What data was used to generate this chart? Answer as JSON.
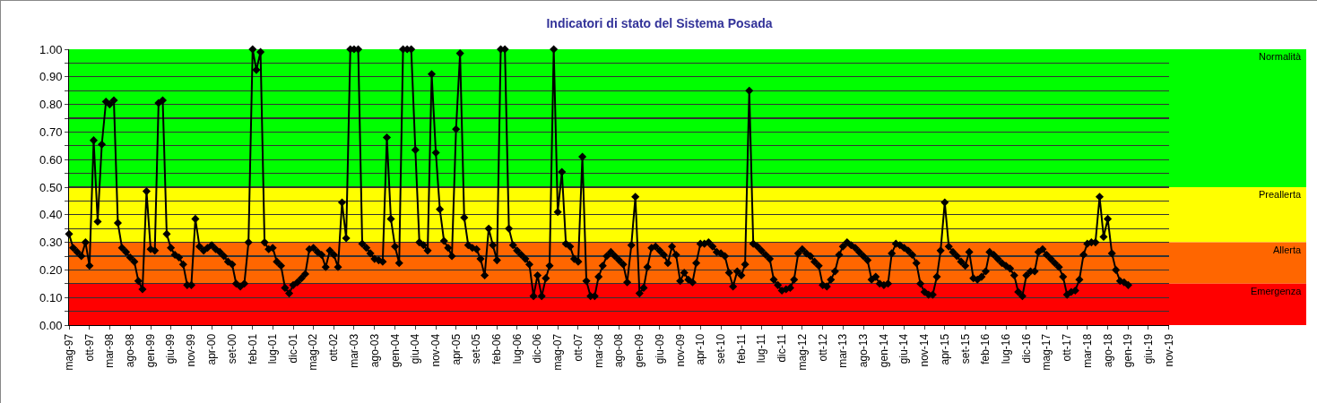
{
  "chart_data": {
    "type": "line",
    "title": "Indicatori di stato del Sistema Posada",
    "x": [
      "1997-05",
      "1997-06",
      "1997-07",
      "1997-08",
      "1997-09",
      "1997-10",
      "1997-11",
      "1997-12",
      "1998-01",
      "1998-02",
      "1998-03",
      "1998-04",
      "1998-05",
      "1998-06",
      "1998-07",
      "1998-08",
      "1998-09",
      "1998-10",
      "1998-11",
      "1998-12",
      "1999-01",
      "1999-02",
      "1999-03",
      "1999-04",
      "1999-05",
      "1999-06",
      "1999-07",
      "1999-08",
      "1999-09",
      "1999-10",
      "1999-11",
      "1999-12",
      "2000-01",
      "2000-02",
      "2000-03",
      "2000-04",
      "2000-05",
      "2000-06",
      "2000-07",
      "2000-08",
      "2000-09",
      "2000-10",
      "2000-11",
      "2000-12",
      "2001-01",
      "2001-02",
      "2001-03",
      "2001-04",
      "2001-05",
      "2001-06",
      "2001-07",
      "2001-08",
      "2001-09",
      "2001-10",
      "2001-11",
      "2001-12",
      "2002-01",
      "2002-02",
      "2002-03",
      "2002-04",
      "2002-05",
      "2002-06",
      "2002-07",
      "2002-08",
      "2002-09",
      "2002-10",
      "2002-11",
      "2002-12",
      "2003-01",
      "2003-02",
      "2003-03",
      "2003-04",
      "2003-05",
      "2003-06",
      "2003-07",
      "2003-08",
      "2003-09",
      "2003-10",
      "2003-11",
      "2003-12",
      "2004-01",
      "2004-02",
      "2004-03",
      "2004-04",
      "2004-05",
      "2004-06",
      "2004-07",
      "2004-08",
      "2004-09",
      "2004-10",
      "2004-11",
      "2004-12",
      "2005-01",
      "2005-02",
      "2005-03",
      "2005-04",
      "2005-05",
      "2005-06",
      "2005-07",
      "2005-08",
      "2005-09",
      "2005-10",
      "2005-11",
      "2005-12",
      "2006-01",
      "2006-02",
      "2006-03",
      "2006-04",
      "2006-05",
      "2006-06",
      "2006-07",
      "2006-08",
      "2006-09",
      "2006-10",
      "2006-11",
      "2006-12",
      "2007-01",
      "2007-02",
      "2007-03",
      "2007-04",
      "2007-05",
      "2007-06",
      "2007-07",
      "2007-08",
      "2007-09",
      "2007-10",
      "2007-11",
      "2007-12",
      "2008-01",
      "2008-02",
      "2008-03",
      "2008-04",
      "2008-05",
      "2008-06",
      "2008-07",
      "2008-08",
      "2008-09",
      "2008-10",
      "2008-11",
      "2008-12",
      "2009-01",
      "2009-02",
      "2009-03",
      "2009-04",
      "2009-05",
      "2009-06",
      "2009-07",
      "2009-08",
      "2009-09",
      "2009-10",
      "2009-11",
      "2009-12",
      "2010-01",
      "2010-02",
      "2010-03",
      "2010-04",
      "2010-05",
      "2010-06",
      "2010-07",
      "2010-08",
      "2010-09",
      "2010-10",
      "2010-11",
      "2010-12",
      "2011-01",
      "2011-02",
      "2011-03",
      "2011-04",
      "2011-05",
      "2011-06",
      "2011-07",
      "2011-08",
      "2011-09",
      "2011-10",
      "2011-11",
      "2011-12",
      "2012-01",
      "2012-02",
      "2012-03",
      "2012-04",
      "2012-05",
      "2012-06",
      "2012-07",
      "2012-08",
      "2012-09",
      "2012-10",
      "2012-11",
      "2012-12",
      "2013-01",
      "2013-02",
      "2013-03",
      "2013-04",
      "2013-05",
      "2013-06",
      "2013-07",
      "2013-08",
      "2013-09",
      "2013-10",
      "2013-11",
      "2013-12",
      "2014-01",
      "2014-02",
      "2014-03",
      "2014-04",
      "2014-05",
      "2014-06",
      "2014-07",
      "2014-08",
      "2014-09",
      "2014-10",
      "2014-11",
      "2014-12",
      "2015-01",
      "2015-02",
      "2015-03",
      "2015-04",
      "2015-05",
      "2015-06",
      "2015-07",
      "2015-08",
      "2015-09",
      "2015-10",
      "2015-11",
      "2015-12",
      "2016-01",
      "2016-02",
      "2016-03",
      "2016-04",
      "2016-05",
      "2016-06",
      "2016-07",
      "2016-08",
      "2016-09",
      "2016-10",
      "2016-11",
      "2016-12",
      "2017-01",
      "2017-02",
      "2017-03",
      "2017-04",
      "2017-05",
      "2017-06",
      "2017-07",
      "2017-08",
      "2017-09",
      "2017-10",
      "2017-11",
      "2017-12",
      "2018-01",
      "2018-02",
      "2018-03",
      "2018-04",
      "2018-05",
      "2018-06",
      "2018-07",
      "2018-08",
      "2018-09",
      "2018-10",
      "2018-11",
      "2018-12",
      "2019-01"
    ],
    "series": [
      {
        "color": "#000000",
        "values": [
          0.33,
          0.28,
          0.265,
          0.25,
          0.3,
          0.215,
          0.67,
          0.375,
          0.655,
          0.81,
          0.8,
          0.815,
          0.37,
          0.28,
          0.265,
          0.245,
          0.23,
          0.16,
          0.13,
          0.485,
          0.275,
          0.27,
          0.805,
          0.815,
          0.33,
          0.28,
          0.255,
          0.245,
          0.22,
          0.145,
          0.145,
          0.385,
          0.285,
          0.27,
          0.28,
          0.29,
          0.275,
          0.265,
          0.25,
          0.23,
          0.22,
          0.15,
          0.14,
          0.15,
          0.3,
          1.0,
          0.925,
          0.99,
          0.3,
          0.275,
          0.28,
          0.23,
          0.215,
          0.135,
          0.115,
          0.145,
          0.155,
          0.17,
          0.185,
          0.275,
          0.28,
          0.265,
          0.255,
          0.21,
          0.27,
          0.255,
          0.21,
          0.445,
          0.315,
          1.0,
          1.0,
          1.0,
          0.295,
          0.28,
          0.26,
          0.24,
          0.235,
          0.23,
          0.68,
          0.385,
          0.285,
          0.225,
          1.0,
          1.0,
          1.0,
          0.635,
          0.3,
          0.29,
          0.27,
          0.91,
          0.625,
          0.42,
          0.305,
          0.28,
          0.25,
          0.71,
          0.985,
          0.39,
          0.29,
          0.28,
          0.275,
          0.24,
          0.18,
          0.35,
          0.29,
          0.235,
          1.0,
          1.0,
          0.35,
          0.29,
          0.27,
          0.255,
          0.24,
          0.22,
          0.105,
          0.18,
          0.105,
          0.17,
          0.215,
          1.0,
          0.41,
          0.555,
          0.295,
          0.285,
          0.24,
          0.23,
          0.61,
          0.16,
          0.105,
          0.105,
          0.175,
          0.215,
          0.25,
          0.265,
          0.25,
          0.235,
          0.22,
          0.155,
          0.29,
          0.465,
          0.115,
          0.135,
          0.21,
          0.28,
          0.285,
          0.27,
          0.255,
          0.225,
          0.285,
          0.255,
          0.16,
          0.19,
          0.165,
          0.155,
          0.225,
          0.295,
          0.295,
          0.3,
          0.285,
          0.265,
          0.26,
          0.25,
          0.19,
          0.14,
          0.195,
          0.18,
          0.22,
          0.85,
          0.295,
          0.285,
          0.27,
          0.255,
          0.24,
          0.165,
          0.145,
          0.125,
          0.13,
          0.135,
          0.165,
          0.26,
          0.275,
          0.26,
          0.25,
          0.23,
          0.215,
          0.145,
          0.14,
          0.165,
          0.195,
          0.255,
          0.285,
          0.3,
          0.29,
          0.28,
          0.265,
          0.25,
          0.235,
          0.165,
          0.175,
          0.15,
          0.145,
          0.15,
          0.26,
          0.295,
          0.29,
          0.28,
          0.27,
          0.255,
          0.225,
          0.15,
          0.12,
          0.11,
          0.11,
          0.175,
          0.27,
          0.445,
          0.285,
          0.265,
          0.25,
          0.23,
          0.215,
          0.265,
          0.17,
          0.165,
          0.175,
          0.195,
          0.265,
          0.255,
          0.24,
          0.225,
          0.215,
          0.205,
          0.18,
          0.12,
          0.105,
          0.18,
          0.195,
          0.195,
          0.265,
          0.275,
          0.255,
          0.24,
          0.225,
          0.21,
          0.175,
          0.11,
          0.12,
          0.125,
          0.165,
          0.255,
          0.295,
          0.3,
          0.3,
          0.465,
          0.32,
          0.385,
          0.26,
          0.2,
          0.16,
          0.155,
          0.145
        ]
      }
    ],
    "xlim": [
      "1997-05",
      "2019-11"
    ],
    "xticks": [
      {
        "value": "1997-05",
        "label": "mag-97"
      },
      {
        "value": "1997-10",
        "label": "ott-97"
      },
      {
        "value": "1998-03",
        "label": "mar-98"
      },
      {
        "value": "1998-08",
        "label": "ago-98"
      },
      {
        "value": "1999-01",
        "label": "gen-99"
      },
      {
        "value": "1999-06",
        "label": "giu-99"
      },
      {
        "value": "1999-11",
        "label": "nov-99"
      },
      {
        "value": "2000-04",
        "label": "apr-00"
      },
      {
        "value": "2000-09",
        "label": "set-00"
      },
      {
        "value": "2001-02",
        "label": "feb-01"
      },
      {
        "value": "2001-07",
        "label": "lug-01"
      },
      {
        "value": "2001-12",
        "label": "dic-01"
      },
      {
        "value": "2002-05",
        "label": "mag-02"
      },
      {
        "value": "2002-10",
        "label": "ott-02"
      },
      {
        "value": "2003-03",
        "label": "mar-03"
      },
      {
        "value": "2003-08",
        "label": "ago-03"
      },
      {
        "value": "2004-01",
        "label": "gen-04"
      },
      {
        "value": "2004-06",
        "label": "giu-04"
      },
      {
        "value": "2004-11",
        "label": "nov-04"
      },
      {
        "value": "2005-04",
        "label": "apr-05"
      },
      {
        "value": "2005-09",
        "label": "set-05"
      },
      {
        "value": "2006-02",
        "label": "feb-06"
      },
      {
        "value": "2006-07",
        "label": "lug-06"
      },
      {
        "value": "2006-12",
        "label": "dic-06"
      },
      {
        "value": "2007-05",
        "label": "mag-07"
      },
      {
        "value": "2007-10",
        "label": "ott-07"
      },
      {
        "value": "2008-03",
        "label": "mar-08"
      },
      {
        "value": "2008-08",
        "label": "ago-08"
      },
      {
        "value": "2009-01",
        "label": "gen-09"
      },
      {
        "value": "2009-06",
        "label": "giu-09"
      },
      {
        "value": "2009-11",
        "label": "nov-09"
      },
      {
        "value": "2010-04",
        "label": "apr-10"
      },
      {
        "value": "2010-09",
        "label": "set-10"
      },
      {
        "value": "2011-02",
        "label": "feb-11"
      },
      {
        "value": "2011-07",
        "label": "lug-11"
      },
      {
        "value": "2011-12",
        "label": "dic-11"
      },
      {
        "value": "2012-05",
        "label": "mag-12"
      },
      {
        "value": "2012-10",
        "label": "ott-12"
      },
      {
        "value": "2013-03",
        "label": "mar-13"
      },
      {
        "value": "2013-08",
        "label": "ago-13"
      },
      {
        "value": "2014-01",
        "label": "gen-14"
      },
      {
        "value": "2014-06",
        "label": "giu-14"
      },
      {
        "value": "2014-11",
        "label": "nov-14"
      },
      {
        "value": "2015-04",
        "label": "apr-15"
      },
      {
        "value": "2015-09",
        "label": "set-15"
      },
      {
        "value": "2016-02",
        "label": "feb-16"
      },
      {
        "value": "2016-07",
        "label": "lug-16"
      },
      {
        "value": "2016-12",
        "label": "dic-16"
      },
      {
        "value": "2017-05",
        "label": "mag-17"
      },
      {
        "value": "2017-10",
        "label": "ott-17"
      },
      {
        "value": "2018-03",
        "label": "mar-18"
      },
      {
        "value": "2018-08",
        "label": "ago-18"
      },
      {
        "value": "2019-01",
        "label": "gen-19"
      },
      {
        "value": "2019-06",
        "label": "giu-19"
      },
      {
        "value": "2019-11",
        "label": "nov-19"
      }
    ],
    "ylim": [
      0,
      1
    ],
    "yticks": [
      {
        "value": 0,
        "label": "0.00"
      },
      {
        "value": 0.05,
        "label": null
      },
      {
        "value": 0.1,
        "label": "0.10"
      },
      {
        "value": 0.15,
        "label": null
      },
      {
        "value": 0.2,
        "label": "0.20"
      },
      {
        "value": 0.25,
        "label": null
      },
      {
        "value": 0.3,
        "label": "0.30"
      },
      {
        "value": 0.35,
        "label": null
      },
      {
        "value": 0.4,
        "label": "0.40"
      },
      {
        "value": 0.45,
        "label": null
      },
      {
        "value": 0.5,
        "label": "0.50"
      },
      {
        "value": 0.55,
        "label": null
      },
      {
        "value": 0.6,
        "label": "0.60"
      },
      {
        "value": 0.65,
        "label": null
      },
      {
        "value": 0.7,
        "label": "0.70"
      },
      {
        "value": 0.75,
        "label": null
      },
      {
        "value": 0.8,
        "label": "0.80"
      },
      {
        "value": 0.85,
        "label": null
      },
      {
        "value": 0.9,
        "label": "0.90"
      },
      {
        "value": 0.95,
        "label": null
      },
      {
        "value": 1,
        "label": "1.00"
      }
    ],
    "bands": [
      {
        "axis": "y",
        "from": 0.5,
        "to": 1,
        "label": "Normalità",
        "color": "#00ff00"
      },
      {
        "axis": "y",
        "from": 0.3,
        "to": 0.5,
        "label": "Preallerta",
        "color": "#ffff00"
      },
      {
        "axis": "y",
        "from": 0.15,
        "to": 0.3,
        "label": "Allerta",
        "color": "#ff6600"
      },
      {
        "axis": "y",
        "from": 0,
        "to": 0.15,
        "label": "Emergenza",
        "color": "#ff0000"
      }
    ],
    "grid": "y",
    "marker": "diamond",
    "line_style": "solid"
  }
}
